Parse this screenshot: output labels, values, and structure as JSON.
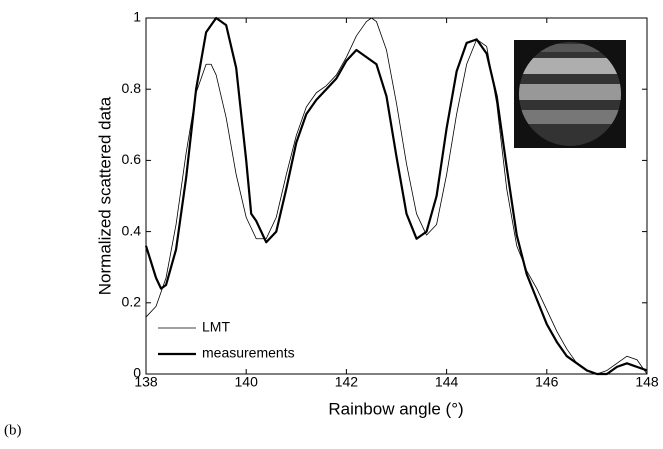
{
  "chart_data": {
    "type": "line",
    "xlabel": "Rainbow angle (°)",
    "ylabel": "Normalized scattered data",
    "panel_label": "(b)",
    "xlim": [
      138,
      148
    ],
    "xticks": [
      138,
      140,
      142,
      144,
      146,
      148
    ],
    "ylim": [
      0,
      1
    ],
    "yticks": [
      0,
      0.2,
      0.4,
      0.6,
      0.8,
      1
    ],
    "legend": "lower left",
    "series": [
      {
        "name": "LMT",
        "color": "#000000",
        "x": [
          138.0,
          138.2,
          138.4,
          138.6,
          138.8,
          139.0,
          139.2,
          139.3,
          139.4,
          139.6,
          139.8,
          140.0,
          140.2,
          140.4,
          140.6,
          140.8,
          141.0,
          141.2,
          141.4,
          141.6,
          141.8,
          142.0,
          142.2,
          142.4,
          142.5,
          142.6,
          142.8,
          143.0,
          143.2,
          143.4,
          143.6,
          143.8,
          144.0,
          144.2,
          144.4,
          144.6,
          144.8,
          145.0,
          145.2,
          145.4,
          145.6,
          145.8,
          146.0,
          146.2,
          146.4,
          146.6,
          146.8,
          147.0,
          147.2,
          147.4,
          147.6,
          147.8,
          148.0
        ],
        "values": [
          0.16,
          0.19,
          0.27,
          0.42,
          0.62,
          0.79,
          0.87,
          0.87,
          0.84,
          0.72,
          0.56,
          0.44,
          0.38,
          0.38,
          0.44,
          0.56,
          0.67,
          0.75,
          0.79,
          0.81,
          0.84,
          0.89,
          0.95,
          0.99,
          1.0,
          0.99,
          0.91,
          0.76,
          0.59,
          0.45,
          0.39,
          0.42,
          0.56,
          0.73,
          0.87,
          0.94,
          0.92,
          0.76,
          0.52,
          0.36,
          0.29,
          0.24,
          0.18,
          0.12,
          0.07,
          0.03,
          0.01,
          0.0,
          0.01,
          0.03,
          0.05,
          0.04,
          0.0
        ]
      },
      {
        "name": "measurements",
        "color": "#000000",
        "x": [
          138.0,
          138.2,
          138.3,
          138.4,
          138.6,
          138.8,
          139.0,
          139.2,
          139.4,
          139.6,
          139.8,
          140.0,
          140.1,
          140.2,
          140.3,
          140.4,
          140.6,
          140.8,
          141.0,
          141.2,
          141.4,
          141.6,
          141.8,
          142.0,
          142.2,
          142.4,
          142.6,
          142.8,
          143.0,
          143.2,
          143.4,
          143.6,
          143.8,
          144.0,
          144.2,
          144.4,
          144.6,
          144.8,
          145.0,
          145.2,
          145.4,
          145.6,
          145.8,
          146.0,
          146.2,
          146.4,
          146.6,
          146.8,
          147.0,
          147.2,
          147.4,
          147.6,
          147.8,
          148.0
        ],
        "values": [
          0.36,
          0.27,
          0.24,
          0.25,
          0.35,
          0.55,
          0.8,
          0.96,
          1.0,
          0.98,
          0.86,
          0.6,
          0.45,
          0.43,
          0.4,
          0.37,
          0.4,
          0.52,
          0.65,
          0.73,
          0.77,
          0.8,
          0.83,
          0.88,
          0.91,
          0.89,
          0.87,
          0.78,
          0.61,
          0.45,
          0.38,
          0.4,
          0.5,
          0.69,
          0.85,
          0.93,
          0.94,
          0.9,
          0.78,
          0.58,
          0.39,
          0.28,
          0.21,
          0.14,
          0.09,
          0.05,
          0.03,
          0.01,
          0.0,
          0.0,
          0.02,
          0.03,
          0.02,
          0.01
        ]
      }
    ]
  }
}
